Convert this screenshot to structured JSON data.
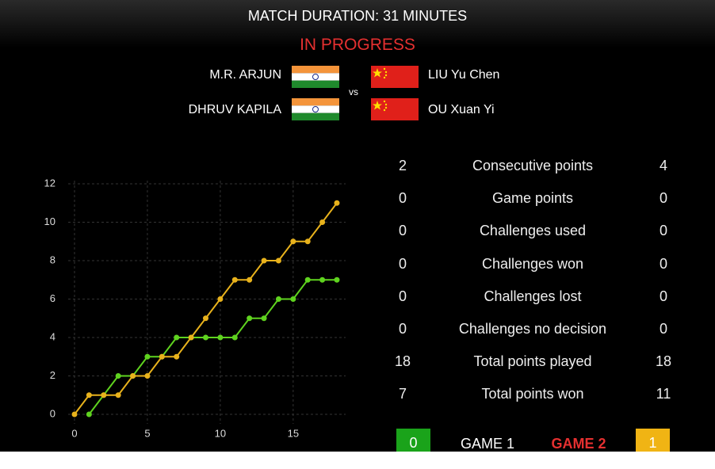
{
  "header": {
    "title": "MATCH DURATION: 31 MINUTES",
    "status": "IN PROGRESS"
  },
  "players": {
    "left": [
      "M.R. ARJUN",
      "DHRUV KAPILA"
    ],
    "vs": "vs",
    "right": [
      "LIU Yu Chen",
      "OU Xuan Yi"
    ]
  },
  "stats": {
    "rows": [
      [
        2,
        "Consecutive points",
        4
      ],
      [
        0,
        "Game points",
        0
      ],
      [
        0,
        "Challenges used",
        0
      ],
      [
        0,
        "Challenges won",
        0
      ],
      [
        0,
        "Challenges lost",
        0
      ],
      [
        0,
        "Challenges no decision",
        0
      ],
      [
        18,
        "Total points played",
        18
      ],
      [
        7,
        "Total points won",
        11
      ]
    ]
  },
  "games": {
    "left_score": 0,
    "labels": [
      "GAME 1",
      "GAME 2"
    ],
    "right_score": 1
  },
  "chart_data": {
    "type": "line",
    "x": [
      0,
      1,
      2,
      3,
      4,
      5,
      6,
      7,
      8,
      9,
      10,
      11,
      12,
      13,
      14,
      15,
      16,
      17,
      18
    ],
    "series": [
      {
        "color": "#5fd31f",
        "values": [
          null,
          0,
          1,
          2,
          2,
          3,
          3,
          4,
          4,
          4,
          4,
          4,
          5,
          5,
          6,
          6,
          7,
          7,
          7
        ]
      },
      {
        "color": "#e8b21c",
        "values": [
          0,
          1,
          1,
          1,
          2,
          2,
          3,
          3,
          4,
          5,
          6,
          7,
          7,
          8,
          8,
          9,
          9,
          10,
          11
        ]
      }
    ],
    "xlim": [
      0,
      18
    ],
    "ylim": [
      0,
      12
    ],
    "xticks": [
      0,
      5,
      10,
      15
    ],
    "yticks": [
      0,
      2,
      4,
      6,
      8,
      10,
      12
    ],
    "grid": true
  }
}
